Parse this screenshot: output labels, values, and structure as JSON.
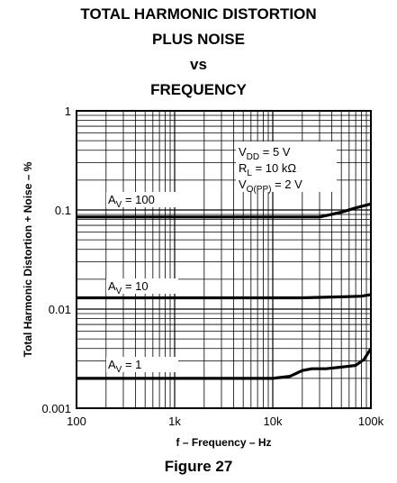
{
  "title_lines": [
    "TOTAL HARMONIC DISTORTION",
    "PLUS NOISE",
    "vs",
    "FREQUENCY"
  ],
  "figure_caption": "Figure 27",
  "chart_data": {
    "type": "line",
    "xlabel": "f – Frequency – Hz",
    "ylabel": "Total Harmonic Distortion + Noise – %",
    "xscale": "log",
    "yscale": "log",
    "xlim": [
      100,
      100000
    ],
    "ylim": [
      0.001,
      1
    ],
    "grid": true,
    "x_tick_labels": [
      "100",
      "1k",
      "10k",
      "100k"
    ],
    "y_tick_labels": [
      "0.001",
      "0.01",
      "0.1",
      "1"
    ],
    "conditions": [
      {
        "main": "V",
        "sub": "DD",
        "rest": " = 5 V"
      },
      {
        "main": "R",
        "sub": "L",
        "rest": " = 10 kΩ"
      },
      {
        "main": "V",
        "sub": "O(PP)",
        "rest": " = 2 V"
      }
    ],
    "series": [
      {
        "label_main": "A",
        "label_sub": "V",
        "label_rest": " = 100",
        "x": [
          100,
          1000,
          10000,
          30000,
          50000,
          70000,
          100000
        ],
        "y": [
          0.085,
          0.085,
          0.085,
          0.085,
          0.095,
          0.105,
          0.115
        ]
      },
      {
        "label_main": "A",
        "label_sub": "V",
        "label_rest": " = 10",
        "x": [
          100,
          1000,
          10000,
          20000,
          50000,
          80000,
          100000
        ],
        "y": [
          0.013,
          0.013,
          0.013,
          0.013,
          0.0133,
          0.0135,
          0.014
        ]
      },
      {
        "label_main": "A",
        "label_sub": "V",
        "label_rest": " = 1",
        "x": [
          100,
          1000,
          10000,
          15000,
          20000,
          25000,
          35000,
          50000,
          70000,
          85000,
          100000
        ],
        "y": [
          0.002,
          0.002,
          0.002,
          0.0021,
          0.0024,
          0.0025,
          0.0025,
          0.0026,
          0.0027,
          0.0031,
          0.004
        ]
      }
    ]
  }
}
